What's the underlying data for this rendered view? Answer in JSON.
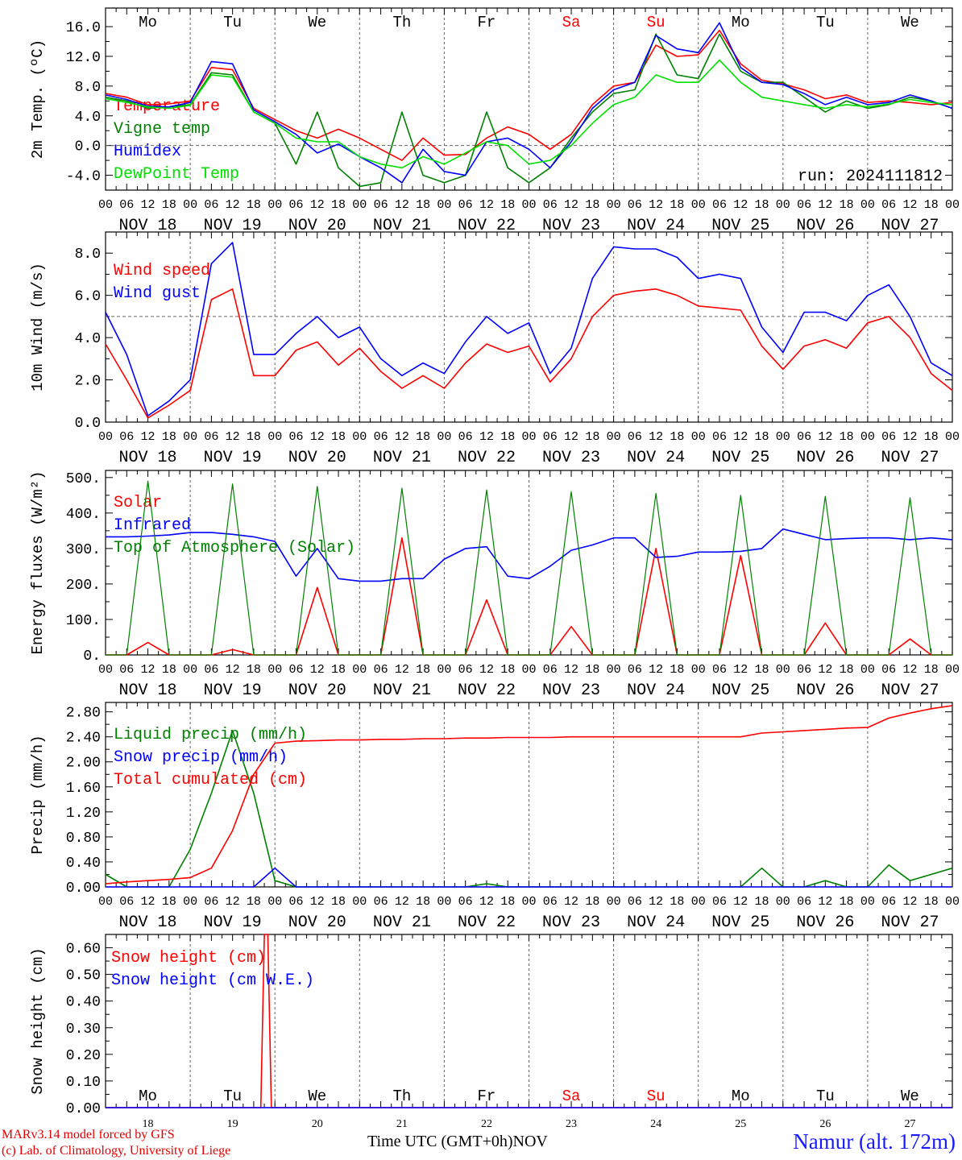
{
  "meta": {
    "run_label": "run: 2024111812",
    "credit_line1": "MARv3.14 model forced by GFS",
    "credit_line2": "(c) Lab. of Climatology, University of Liege",
    "station": "Namur (alt. 172m)",
    "bottom_axis_label": "Time UTC (GMT+0h)",
    "bottom_month": "NOV"
  },
  "colors": {
    "red": "#ff0000",
    "green": "#008000",
    "blue": "#0000ff",
    "lightgreen": "#00e000",
    "purple": "#800080",
    "grid": "#666666"
  },
  "days": {
    "names": [
      "Mo",
      "Tu",
      "We",
      "Th",
      "Fr",
      "Sa",
      "Su",
      "Mo",
      "Tu",
      "We"
    ],
    "weekend_index": [
      5,
      6
    ],
    "dates": [
      "NOV 18",
      "NOV 19",
      "NOV 20",
      "NOV 21",
      "NOV 22",
      "NOV 23",
      "NOV 24",
      "NOV 25",
      "NOV 26",
      "NOV 27"
    ],
    "day_numbers": [
      "18",
      "19",
      "20",
      "21",
      "22",
      "23",
      "24",
      "25",
      "26",
      "27"
    ],
    "hour_ticks": [
      "00",
      "06",
      "12",
      "18"
    ],
    "final_tick": "00"
  },
  "chart_data": [
    {
      "type": "line",
      "ylabel": "2m Temp. (ºC)",
      "ylim": [
        -6,
        18.5
      ],
      "yticks": [
        "-4.0",
        "0.0",
        "4.0",
        "8.0",
        "12.0",
        "16.0"
      ],
      "ytick_values": [
        -4,
        0,
        4,
        8,
        12,
        16
      ],
      "reference_line": 0,
      "x_hours": [
        0,
        6,
        12,
        18,
        24,
        30,
        36,
        42,
        48,
        54,
        60,
        66,
        72,
        78,
        84,
        90,
        96,
        102,
        108,
        114,
        120,
        126,
        132,
        138,
        144,
        150,
        156,
        162,
        168,
        174,
        180,
        186,
        192,
        198,
        204,
        210,
        216,
        222,
        228,
        234,
        240
      ],
      "series": [
        {
          "name": "Temperature",
          "color": "red",
          "values": [
            7.0,
            6.5,
            5.5,
            5.6,
            6.0,
            10.5,
            10.2,
            5.0,
            3.5,
            2.0,
            1.0,
            2.2,
            1.0,
            -0.5,
            -2.0,
            1.0,
            -1.3,
            -1.2,
            1.0,
            2.5,
            1.5,
            -0.5,
            1.5,
            5.5,
            8.0,
            8.5,
            13.5,
            12.0,
            12.2,
            15.5,
            11.0,
            8.8,
            8.3,
            7.5,
            6.3,
            6.8,
            5.8,
            6.0,
            5.8,
            5.5,
            5.8
          ]
        },
        {
          "name": "Vigne temp",
          "color": "green",
          "values": [
            6.5,
            6.0,
            5.0,
            5.2,
            5.5,
            9.8,
            9.5,
            4.5,
            3.0,
            -2.5,
            4.5,
            -3.0,
            -5.5,
            -5.0,
            4.5,
            -4.0,
            -5.0,
            -4.0,
            4.5,
            -3.0,
            -5.0,
            -3.0,
            1.0,
            4.5,
            7.0,
            7.5,
            15.0,
            9.5,
            9.0,
            15.0,
            10.0,
            8.5,
            8.5,
            6.5,
            4.5,
            6.0,
            5.0,
            5.5,
            6.5,
            6.0,
            5.0
          ]
        },
        {
          "name": "Humidex",
          "color": "blue",
          "values": [
            6.8,
            6.2,
            5.3,
            5.2,
            5.8,
            11.3,
            11.0,
            4.8,
            3.2,
            1.5,
            -1.0,
            0.2,
            -1.5,
            -3.0,
            -5.0,
            -0.5,
            -3.5,
            -4.0,
            0.5,
            1.0,
            -0.5,
            -3.0,
            0.5,
            5.0,
            7.5,
            8.5,
            14.8,
            13.0,
            12.5,
            16.5,
            10.5,
            8.5,
            8.2,
            7.0,
            5.5,
            6.5,
            5.5,
            5.8,
            6.8,
            6.0,
            5.0
          ]
        },
        {
          "name": "DewPoint Temp",
          "color": "lightgreen",
          "values": [
            6.3,
            5.8,
            5.2,
            5.0,
            5.4,
            9.5,
            9.2,
            4.5,
            3.0,
            1.0,
            0.5,
            0.5,
            -1.5,
            -2.5,
            -3.0,
            -1.5,
            -2.5,
            -1.0,
            0.5,
            0.0,
            -2.5,
            -2.0,
            0.0,
            3.0,
            5.5,
            6.5,
            9.5,
            8.5,
            8.5,
            11.5,
            8.5,
            6.5,
            6.0,
            5.5,
            5.0,
            5.5,
            5.2,
            5.6,
            6.2,
            5.8,
            5.5
          ]
        }
      ]
    },
    {
      "type": "line",
      "ylabel": "10m Wind (m/s)",
      "ylim": [
        0,
        9
      ],
      "yticks": [
        "0.0",
        "2.0",
        "4.0",
        "6.0",
        "8.0"
      ],
      "ytick_values": [
        0,
        2,
        4,
        6,
        8
      ],
      "reference_line": 5,
      "x_hours": [
        0,
        6,
        12,
        18,
        24,
        30,
        36,
        42,
        48,
        54,
        60,
        66,
        72,
        78,
        84,
        90,
        96,
        102,
        108,
        114,
        120,
        126,
        132,
        138,
        144,
        150,
        156,
        162,
        168,
        174,
        180,
        186,
        192,
        198,
        204,
        210,
        216,
        222,
        228,
        234,
        240
      ],
      "series": [
        {
          "name": "Wind speed",
          "color": "red",
          "values": [
            3.7,
            2.0,
            0.2,
            0.8,
            1.5,
            5.8,
            6.3,
            2.2,
            2.2,
            3.4,
            3.8,
            2.7,
            3.5,
            2.4,
            1.6,
            2.2,
            1.6,
            2.8,
            3.7,
            3.3,
            3.6,
            1.9,
            3.0,
            5.0,
            6.0,
            6.2,
            6.3,
            6.0,
            5.5,
            5.4,
            5.3,
            3.6,
            2.5,
            3.6,
            3.9,
            3.5,
            4.7,
            5.0,
            4.0,
            2.3,
            1.5
          ]
        },
        {
          "name": "Wind gust",
          "color": "blue",
          "values": [
            5.2,
            3.2,
            0.3,
            1.0,
            2.0,
            7.5,
            8.5,
            3.2,
            3.2,
            4.2,
            5.0,
            4.0,
            4.5,
            3.0,
            2.2,
            2.8,
            2.3,
            3.8,
            5.0,
            4.2,
            4.7,
            2.3,
            3.5,
            6.8,
            8.3,
            8.2,
            8.2,
            7.8,
            6.8,
            7.0,
            6.8,
            4.5,
            3.3,
            5.2,
            5.2,
            4.8,
            6.0,
            6.5,
            5.0,
            2.8,
            2.2
          ]
        }
      ]
    },
    {
      "type": "line",
      "ylabel": "Energy fluxes (W/m²)",
      "ylim": [
        0,
        520
      ],
      "yticks": [
        "0.",
        "100.",
        "200.",
        "300.",
        "400.",
        "500."
      ],
      "ytick_values": [
        0,
        100,
        200,
        300,
        400,
        500
      ],
      "x_hours": [
        0,
        6,
        12,
        18,
        24,
        30,
        36,
        42,
        48,
        54,
        60,
        66,
        72,
        78,
        84,
        90,
        96,
        102,
        108,
        114,
        120,
        126,
        132,
        138,
        144,
        150,
        156,
        162,
        168,
        174,
        180,
        186,
        192,
        198,
        204,
        210,
        216,
        222,
        228,
        234,
        240
      ],
      "series": [
        {
          "name": "Solar",
          "color": "red",
          "values": [
            0,
            0,
            35,
            0,
            0,
            0,
            15,
            0,
            0,
            0,
            190,
            0,
            0,
            0,
            330,
            0,
            0,
            0,
            155,
            0,
            0,
            0,
            80,
            0,
            0,
            0,
            300,
            0,
            0,
            0,
            280,
            0,
            0,
            0,
            90,
            0,
            0,
            0,
            45,
            0,
            0
          ]
        },
        {
          "name": "Infrared",
          "color": "blue",
          "values": [
            333,
            333,
            335,
            338,
            345,
            345,
            340,
            333,
            320,
            222,
            300,
            215,
            208,
            208,
            215,
            215,
            270,
            300,
            305,
            222,
            215,
            250,
            295,
            310,
            330,
            330,
            275,
            278,
            290,
            290,
            292,
            300,
            355,
            340,
            325,
            328,
            330,
            330,
            325,
            330,
            325
          ]
        },
        {
          "name": "Top of Atmosphere (Solar)",
          "color": "green",
          "values": [
            0,
            0,
            490,
            0,
            0,
            0,
            482,
            0,
            0,
            0,
            475,
            0,
            0,
            0,
            470,
            0,
            0,
            0,
            465,
            0,
            0,
            0,
            460,
            0,
            0,
            0,
            455,
            0,
            0,
            0,
            450,
            0,
            0,
            0,
            447,
            0,
            0,
            0,
            443,
            0,
            0
          ]
        }
      ]
    },
    {
      "type": "line",
      "ylabel": "Precip (mm/h)",
      "ylim": [
        0,
        2.95
      ],
      "yticks": [
        "0.00",
        "0.40",
        "0.80",
        "1.20",
        "1.60",
        "2.00",
        "2.40",
        "2.80"
      ],
      "ytick_values": [
        0,
        0.4,
        0.8,
        1.2,
        1.6,
        2.0,
        2.4,
        2.8
      ],
      "x_hours": [
        0,
        6,
        12,
        18,
        24,
        30,
        36,
        42,
        48,
        54,
        60,
        66,
        72,
        78,
        84,
        90,
        96,
        102,
        108,
        114,
        120,
        126,
        132,
        138,
        144,
        150,
        156,
        162,
        168,
        174,
        180,
        186,
        192,
        198,
        204,
        210,
        216,
        222,
        228,
        234,
        240
      ],
      "series": [
        {
          "name": "Liquid precip (mm/h)",
          "color": "green",
          "values": [
            0.2,
            0,
            0,
            0,
            0.6,
            1.5,
            2.5,
            1.5,
            0.1,
            0,
            0,
            0,
            0,
            0,
            0,
            0,
            0,
            0,
            0.05,
            0,
            0,
            0,
            0,
            0,
            0,
            0,
            0,
            0,
            0,
            0,
            0,
            0.3,
            0,
            0,
            0.1,
            0,
            0,
            0.35,
            0.1,
            0.2,
            0.3
          ]
        },
        {
          "name": "Snow precip (mm/h)",
          "color": "blue",
          "values": [
            0,
            0,
            0,
            0,
            0,
            0,
            0,
            0,
            0.3,
            0,
            0,
            0,
            0,
            0,
            0,
            0,
            0,
            0,
            0,
            0,
            0,
            0,
            0,
            0,
            0,
            0,
            0,
            0,
            0,
            0,
            0,
            0,
            0,
            0,
            0,
            0,
            0,
            0,
            0,
            0,
            0
          ]
        },
        {
          "name": "Total cumulated (cm)",
          "color": "red",
          "values": [
            0.05,
            0.08,
            0.1,
            0.12,
            0.15,
            0.3,
            0.9,
            1.8,
            2.3,
            2.33,
            2.34,
            2.35,
            2.35,
            2.36,
            2.36,
            2.37,
            2.37,
            2.38,
            2.38,
            2.39,
            2.39,
            2.39,
            2.4,
            2.4,
            2.4,
            2.4,
            2.4,
            2.4,
            2.4,
            2.4,
            2.4,
            2.46,
            2.48,
            2.5,
            2.52,
            2.54,
            2.55,
            2.7,
            2.78,
            2.85,
            2.9
          ]
        }
      ]
    },
    {
      "type": "line",
      "ylabel": "Snow height (cm)",
      "ylim": [
        0,
        0.65
      ],
      "yticks": [
        "0.00",
        "0.10",
        "0.20",
        "0.30",
        "0.40",
        "0.50",
        "0.60"
      ],
      "ytick_values": [
        0,
        0.1,
        0.2,
        0.3,
        0.4,
        0.5,
        0.6
      ],
      "x_hours": [
        0,
        44,
        45,
        46,
        47,
        240
      ],
      "series": [
        {
          "name": "Snow height (cm)",
          "color": "red",
          "values": [
            0,
            0,
            0.65,
            0.65,
            0,
            0
          ]
        },
        {
          "name": "Snow height (cm W.E.)",
          "color": "blue",
          "values": [
            0,
            0,
            0,
            0,
            0,
            0
          ]
        }
      ]
    }
  ]
}
